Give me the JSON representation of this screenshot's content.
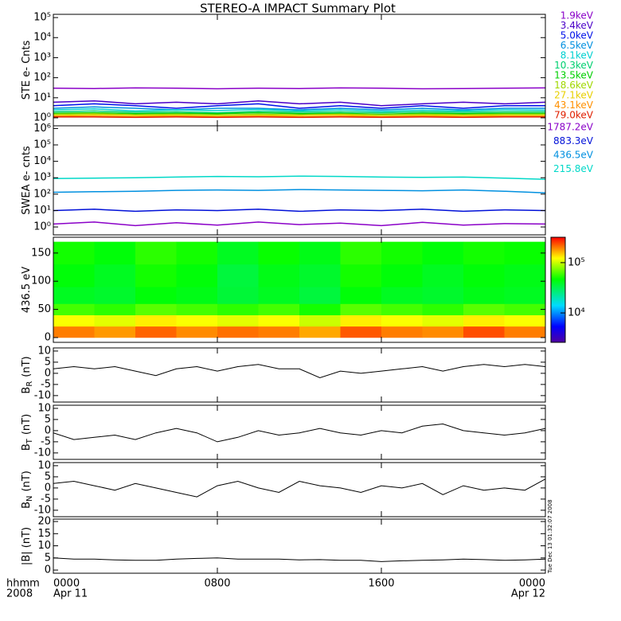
{
  "title": "STEREO-A IMPACT Summary Plot",
  "timestamp": "Tue Dec 13 01:32:07 2008",
  "x_axis": {
    "xlim": [
      0,
      24
    ],
    "xticks": [
      {
        "value": 0,
        "label": "0000"
      },
      {
        "value": 8,
        "label": "0800"
      },
      {
        "value": 16,
        "label": "1600"
      },
      {
        "value": 24,
        "label": "0000"
      }
    ],
    "start_date": "Apr 11",
    "end_date": "Apr 12",
    "x_label": "hhmm",
    "year": "2008"
  },
  "chart_data": [
    {
      "type": "line",
      "ylabel": "STE e- Cnts",
      "log": true,
      "ylim": [
        0.4,
        145000
      ],
      "yticks": [
        {
          "value": 1,
          "label": "10⁰"
        },
        {
          "value": 10,
          "label": "10¹"
        },
        {
          "value": 100,
          "label": "10²"
        },
        {
          "value": 1000,
          "label": "10³"
        },
        {
          "value": 10000,
          "label": "10⁴"
        },
        {
          "value": 100000,
          "label": "10⁵"
        }
      ],
      "x": [
        0,
        2,
        4,
        6,
        8,
        10,
        12,
        14,
        16,
        18,
        20,
        22,
        24
      ],
      "series": [
        {
          "name": "1.9keV",
          "color": "#8a00c8",
          "values": [
            30,
            29,
            31,
            30,
            28,
            30,
            29,
            31,
            30,
            28,
            29,
            30,
            31
          ]
        },
        {
          "name": "3.4keV",
          "color": "#4a00c8",
          "values": [
            6,
            7,
            5,
            6,
            5,
            7,
            5,
            6,
            4,
            5,
            6,
            5,
            6
          ]
        },
        {
          "name": "5.0keV",
          "color": "#0010e8",
          "values": [
            4,
            5,
            4,
            3,
            4,
            5,
            3,
            4,
            3,
            4,
            3,
            4,
            4
          ]
        },
        {
          "name": "6.5keV",
          "color": "#0090e0",
          "values": [
            3,
            3.5,
            3,
            2.5,
            3,
            3,
            2.5,
            3,
            2.5,
            3,
            2.5,
            3,
            3
          ]
        },
        {
          "name": "8.1keV",
          "color": "#00d0d0",
          "values": [
            2.5,
            2.8,
            2.2,
            2.5,
            2.3,
            2.6,
            2.2,
            2.5,
            2.1,
            2.4,
            2.2,
            2.5,
            2.4
          ]
        },
        {
          "name": "10.3keV",
          "color": "#00d070",
          "values": [
            2,
            2.2,
            1.9,
            2,
            1.8,
            2.1,
            1.9,
            2,
            1.8,
            2,
            1.9,
            2,
            2
          ]
        },
        {
          "name": "13.5keV",
          "color": "#00d000",
          "values": [
            1.7,
            1.8,
            1.6,
            1.7,
            1.6,
            1.8,
            1.6,
            1.7,
            1.5,
            1.7,
            1.6,
            1.7,
            1.7
          ]
        },
        {
          "name": "18.6keV",
          "color": "#a0d800",
          "values": [
            1.5,
            1.6,
            1.4,
            1.5,
            1.4,
            1.5,
            1.4,
            1.5,
            1.4,
            1.5,
            1.4,
            1.5,
            1.5
          ]
        },
        {
          "name": "27.1keV",
          "color": "#e8d000",
          "values": [
            1.3,
            1.4,
            1.3,
            1.3,
            1.2,
            1.3,
            1.3,
            1.4,
            1.2,
            1.3,
            1.3,
            1.3,
            1.3
          ]
        },
        {
          "name": "43.1keV",
          "color": "#ff9000",
          "values": [
            1.2,
            1.2,
            1.1,
            1.2,
            1.1,
            1.2,
            1.1,
            1.2,
            1.1,
            1.2,
            1.1,
            1.2,
            1.2
          ]
        },
        {
          "name": "79.0keV",
          "color": "#e02000",
          "values": [
            1.1,
            1.1,
            1.05,
            1.1,
            1.05,
            1.1,
            1.05,
            1.1,
            1.05,
            1.1,
            1.05,
            1.1,
            1.1
          ]
        }
      ]
    },
    {
      "type": "line",
      "ylabel": "SWEA e- cnts",
      "log": true,
      "ylim": [
        0.33,
        1460000
      ],
      "yticks": [
        {
          "value": 1,
          "label": "10⁰"
        },
        {
          "value": 10,
          "label": "10¹"
        },
        {
          "value": 100,
          "label": "10²"
        },
        {
          "value": 1000,
          "label": "10³"
        },
        {
          "value": 10000,
          "label": "10⁴"
        },
        {
          "value": 100000,
          "label": "10⁵"
        },
        {
          "value": 1000000,
          "label": "10⁶"
        }
      ],
      "x": [
        0,
        2,
        4,
        6,
        8,
        10,
        12,
        14,
        16,
        18,
        20,
        22,
        24
      ],
      "series": [
        {
          "name": "1787.2eV",
          "color": "#8a00c8",
          "values": [
            1.5,
            2,
            1.2,
            1.8,
            1.3,
            2,
            1.4,
            1.7,
            1.2,
            1.9,
            1.3,
            1.6,
            1.5
          ]
        },
        {
          "name": "883.3eV",
          "color": "#0010d8",
          "values": [
            10,
            12,
            9,
            11,
            10,
            12,
            9,
            11,
            10,
            12,
            9,
            11,
            10
          ]
        },
        {
          "name": "436.5eV",
          "color": "#0090e0",
          "values": [
            130,
            140,
            150,
            170,
            180,
            170,
            190,
            180,
            170,
            160,
            180,
            150,
            120
          ]
        },
        {
          "name": "215.8eV",
          "color": "#00d8c8",
          "values": [
            900,
            950,
            1000,
            1100,
            1200,
            1150,
            1250,
            1200,
            1100,
            1050,
            1100,
            950,
            800
          ]
        }
      ]
    },
    {
      "type": "heatmap",
      "ylabel": "436.5 eV",
      "ylim": [
        -8.5,
        178
      ],
      "yticks": [
        0,
        50,
        100,
        150
      ],
      "x_edges": [
        0,
        2,
        4,
        6,
        8,
        10,
        12,
        14,
        16,
        18,
        20,
        22,
        24
      ],
      "y_edges": [
        0,
        20,
        40,
        60,
        90,
        130,
        170
      ],
      "z": [
        [
          200000,
          180000,
          220000,
          190000,
          210000,
          200000,
          170000,
          230000,
          200000,
          190000,
          240000,
          200000
        ],
        [
          120000,
          110000,
          130000,
          120000,
          110000,
          120000,
          100000,
          130000,
          120000,
          110000,
          130000,
          120000
        ],
        [
          60000,
          55000,
          65000,
          60000,
          55000,
          60000,
          50000,
          65000,
          60000,
          55000,
          65000,
          60000
        ],
        [
          40000,
          38000,
          45000,
          42000,
          36000,
          40000,
          35000,
          45000,
          40000,
          38000,
          42000,
          40000
        ],
        [
          45000,
          40000,
          50000,
          45000,
          35000,
          42000,
          38000,
          50000,
          45000,
          40000,
          45000,
          42000
        ],
        [
          50000,
          45000,
          55000,
          50000,
          40000,
          48000,
          42000,
          55000,
          50000,
          45000,
          50000,
          48000
        ]
      ],
      "clim": [
        2600,
        320000
      ],
      "cticks": [
        {
          "value": 10000,
          "label": "10⁴"
        },
        {
          "value": 100000,
          "label": "10⁵"
        }
      ]
    },
    {
      "type": "line",
      "ylabel": "B",
      "ylabel_sub": "R",
      "ylabel_unit": "(nT)",
      "ylim": [
        -12.9,
        11.4
      ],
      "yticks": [
        -10,
        -5,
        0,
        5,
        10
      ],
      "x": [
        0,
        1,
        2,
        3,
        4,
        5,
        6,
        7,
        8,
        9,
        10,
        11,
        12,
        13,
        14,
        15,
        16,
        17,
        18,
        19,
        20,
        21,
        22,
        23,
        24
      ],
      "series": [
        {
          "color": "#000000",
          "values": [
            2,
            3,
            2,
            3,
            1,
            -1,
            2,
            3,
            1,
            3,
            4,
            2,
            2,
            -2,
            1,
            0,
            1,
            2,
            3,
            1,
            3,
            4,
            3,
            4,
            3
          ]
        }
      ]
    },
    {
      "type": "line",
      "ylabel": "B",
      "ylabel_sub": "T",
      "ylabel_unit": "(nT)",
      "ylim": [
        -12.9,
        11.4
      ],
      "yticks": [
        -10,
        -5,
        0,
        5,
        10
      ],
      "x": [
        0,
        1,
        2,
        3,
        4,
        5,
        6,
        7,
        8,
        9,
        10,
        11,
        12,
        13,
        14,
        15,
        16,
        17,
        18,
        19,
        20,
        21,
        22,
        23,
        24
      ],
      "series": [
        {
          "color": "#000000",
          "values": [
            -1,
            -4,
            -3,
            -2,
            -4,
            -1,
            1,
            -1,
            -5,
            -3,
            0,
            -2,
            -1,
            1,
            -1,
            -2,
            0,
            -1,
            2,
            3,
            0,
            -1,
            -2,
            -1,
            1
          ]
        }
      ]
    },
    {
      "type": "line",
      "ylabel": "B",
      "ylabel_sub": "N",
      "ylabel_unit": "(nT)",
      "ylim": [
        -12.9,
        11.4
      ],
      "yticks": [
        -10,
        -5,
        0,
        5,
        10
      ],
      "x": [
        0,
        1,
        2,
        3,
        4,
        5,
        6,
        7,
        8,
        9,
        10,
        11,
        12,
        13,
        14,
        15,
        16,
        17,
        18,
        19,
        20,
        21,
        22,
        23,
        24
      ],
      "series": [
        {
          "color": "#000000",
          "values": [
            2,
            3,
            1,
            -1,
            2,
            0,
            -2,
            -4,
            1,
            3,
            0,
            -2,
            3,
            1,
            0,
            -2,
            1,
            0,
            2,
            -3,
            1,
            -1,
            0,
            -1,
            4
          ]
        }
      ]
    },
    {
      "type": "line",
      "ylabel": "|B| (nT)",
      "ylim": [
        -1.3,
        21
      ],
      "yticks": [
        0,
        5,
        10,
        15,
        20
      ],
      "x": [
        0,
        1,
        2,
        3,
        4,
        5,
        6,
        7,
        8,
        9,
        10,
        11,
        12,
        13,
        14,
        15,
        16,
        17,
        18,
        19,
        20,
        21,
        22,
        23,
        24
      ],
      "series": [
        {
          "color": "#000000",
          "values": [
            5,
            4.5,
            4.5,
            4.2,
            4,
            4,
            4.5,
            4.8,
            5,
            4.5,
            4.5,
            4.5,
            4.2,
            4.3,
            4,
            4,
            3.5,
            3.8,
            4,
            4.2,
            4.5,
            4.3,
            4,
            4.2,
            4.5
          ]
        }
      ]
    }
  ]
}
